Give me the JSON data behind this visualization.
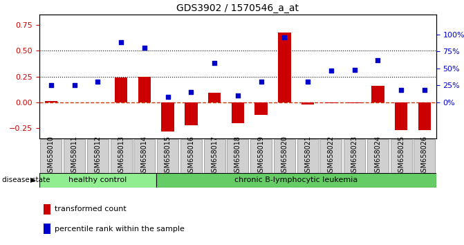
{
  "title": "GDS3902 / 1570546_a_at",
  "samples": [
    "GSM658010",
    "GSM658011",
    "GSM658012",
    "GSM658013",
    "GSM658014",
    "GSM658015",
    "GSM658016",
    "GSM658017",
    "GSM658018",
    "GSM658019",
    "GSM658020",
    "GSM658021",
    "GSM658022",
    "GSM658023",
    "GSM658024",
    "GSM658025",
    "GSM658026"
  ],
  "bar_values": [
    0.01,
    0.0,
    0.0,
    0.24,
    0.25,
    -0.28,
    -0.22,
    0.09,
    -0.2,
    -0.12,
    0.68,
    -0.02,
    -0.01,
    -0.01,
    0.16,
    -0.27,
    -0.27
  ],
  "dot_values_pct": [
    25,
    25,
    30,
    88,
    80,
    8,
    15,
    58,
    10,
    30,
    95,
    30,
    47,
    48,
    62,
    18,
    18
  ],
  "healthy_count": 5,
  "bar_color": "#cc0000",
  "dot_color": "#0000cc",
  "dashed_line_color": "#cc3300",
  "healthy_color": "#90ee90",
  "leukemia_color": "#66cc66",
  "ylim": [
    -0.35,
    0.85
  ],
  "yticks_left": [
    -0.25,
    0.0,
    0.25,
    0.5,
    0.75
  ],
  "right_axis_pct": [
    0,
    25,
    50,
    75,
    100
  ],
  "dotted_lines": [
    0.25,
    0.5
  ],
  "healthy_label": "healthy control",
  "leukemia_label": "chronic B-lymphocytic leukemia",
  "disease_state_label": "disease state",
  "legend_bar_label": "transformed count",
  "legend_dot_label": "percentile rank within the sample",
  "title_fontsize": 10,
  "tick_fontsize": 7,
  "axis_fontsize": 8
}
